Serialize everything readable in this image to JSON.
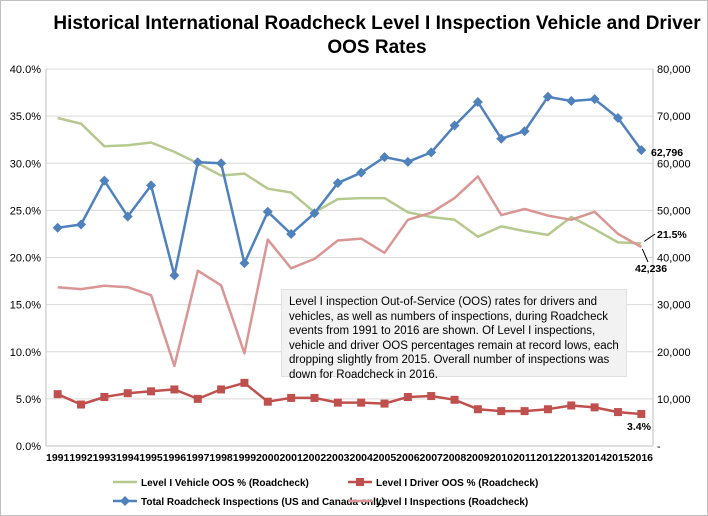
{
  "chart_data": {
    "type": "line",
    "title_line1": "Historical International Roadcheck Level I Inspection Vehicle and Driver",
    "title_line2": "OOS Rates",
    "categories": [
      "1991",
      "1992",
      "1993",
      "1994",
      "1995",
      "1996",
      "1997",
      "1998",
      "1999",
      "2000",
      "2001",
      "2002",
      "2003",
      "2004",
      "2005",
      "2006",
      "2007",
      "2008",
      "2009",
      "2010",
      "2011",
      "2012",
      "2013",
      "2014",
      "2015",
      "2016"
    ],
    "y_left": {
      "ylim": [
        0,
        40
      ],
      "ticks": [
        "0.0%",
        "5.0%",
        "10.0%",
        "15.0%",
        "20.0%",
        "25.0%",
        "30.0%",
        "35.0%",
        "40.0%"
      ]
    },
    "y_right": {
      "ylim": [
        0,
        80000
      ],
      "ticks": [
        "-",
        "10,000",
        "20,000",
        "30,000",
        "40,000",
        "50,000",
        "60,000",
        "70,000",
        "80,000"
      ]
    },
    "grid": true,
    "legend_position": "bottom",
    "series": [
      {
        "name": "Level I Vehicle OOS % (Roadcheck)",
        "axis": "left",
        "color": "#b5c98f",
        "marker": "none",
        "values": [
          34.8,
          34.2,
          31.8,
          31.9,
          32.2,
          31.2,
          30.0,
          28.7,
          28.9,
          27.3,
          26.9,
          24.8,
          26.2,
          26.3,
          26.3,
          24.8,
          24.3,
          24.0,
          22.2,
          23.3,
          22.8,
          22.4,
          24.3,
          23.0,
          21.6,
          21.5
        ]
      },
      {
        "name": "Level I Driver OOS % (Roadcheck)",
        "axis": "left",
        "color": "#c0504d",
        "marker": "square",
        "values": [
          5.5,
          4.4,
          5.2,
          5.6,
          5.8,
          6.0,
          5.0,
          6.0,
          6.7,
          4.7,
          5.1,
          5.1,
          4.6,
          4.6,
          4.5,
          5.2,
          5.3,
          4.9,
          3.9,
          3.7,
          3.7,
          3.9,
          4.3,
          4.1,
          3.6,
          3.4
        ]
      },
      {
        "name": "Total Roadcheck Inspections (US and Canada only)",
        "axis": "right",
        "color": "#4f81bd",
        "marker": "diamond",
        "values": [
          46300,
          47000,
          56300,
          48700,
          55300,
          36200,
          60200,
          60000,
          38800,
          49700,
          45000,
          49400,
          55800,
          58000,
          61300,
          60300,
          62300,
          68000,
          73000,
          65200,
          66800,
          74100,
          73200,
          73600,
          69600,
          62796
        ]
      },
      {
        "name": "Level I Inspections (Roadcheck)",
        "axis": "right",
        "color": "#d99694",
        "marker": "none",
        "values": [
          33700,
          33300,
          34000,
          33700,
          32000,
          17000,
          37200,
          34100,
          19700,
          43800,
          37700,
          39700,
          43600,
          44000,
          41000,
          48000,
          49500,
          52600,
          57200,
          49000,
          50300,
          48900,
          48000,
          49700,
          45000,
          42236
        ]
      }
    ],
    "annotations": {
      "total_last": "62,796",
      "vehicle_last": "21.5%",
      "inspections_last": "42,236",
      "driver_last": "3.4%"
    }
  },
  "note": "Level I inspection Out-of-Service (OOS) rates for drivers and vehicles, as well as numbers of inspections, during Roadcheck events from 1991 to 2016 are shown.  Of Level I inspections, vehicle and driver OOS percentages remain at record lows, each dropping slightly from 2015. Overall number of inspections was down for Roadcheck in 2016."
}
